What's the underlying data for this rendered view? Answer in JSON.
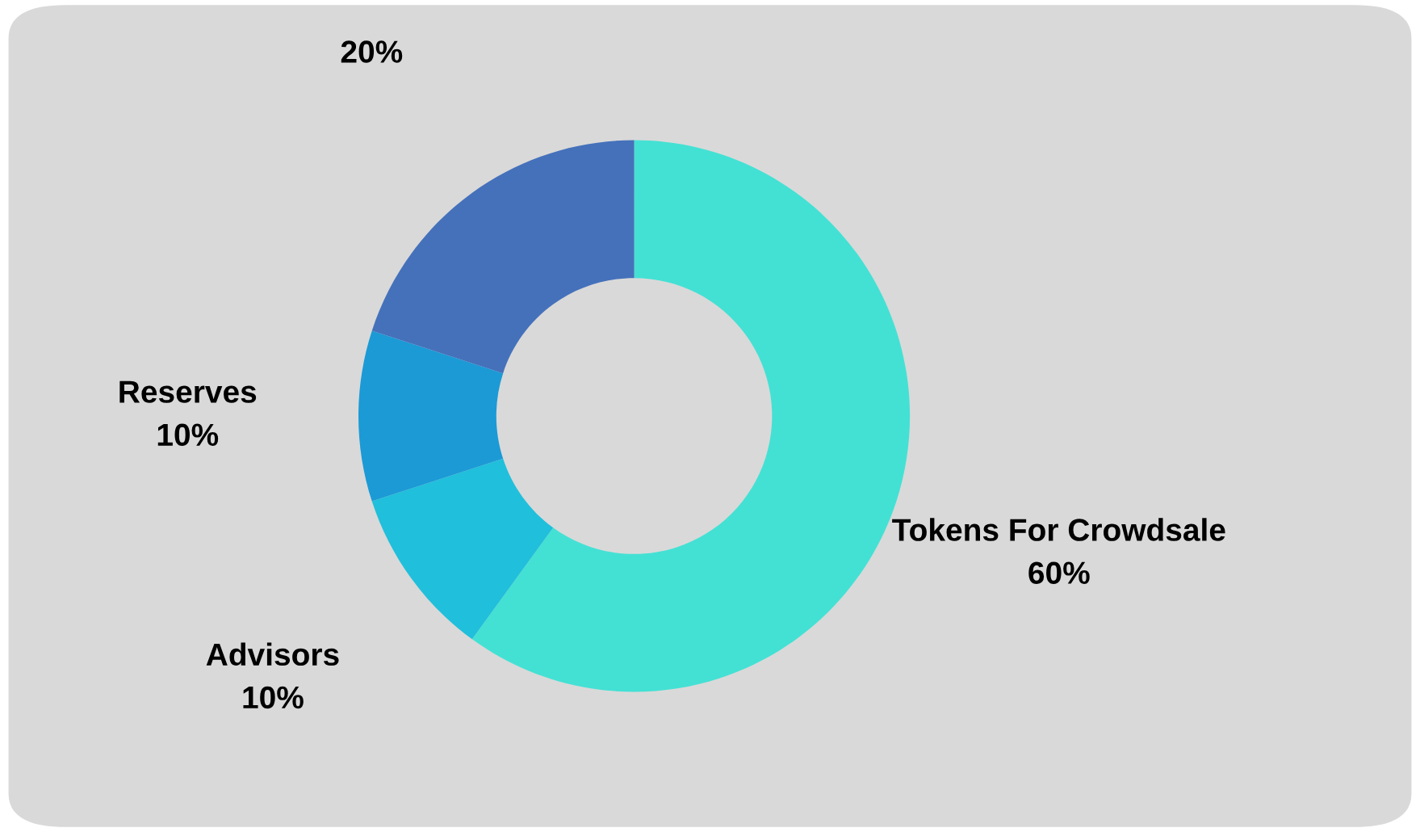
{
  "chart_data": {
    "type": "donut",
    "categories": [
      "Tokens For Crowdsale",
      "Advisors",
      "Reserves",
      null
    ],
    "values": [
      60,
      10,
      10,
      20
    ],
    "value_labels": [
      "60%",
      "10%",
      "10%",
      "20%"
    ],
    "colors": [
      "#43e1d4",
      "#20bfdb",
      "#1b9ad6",
      "#4571bb"
    ]
  }
}
